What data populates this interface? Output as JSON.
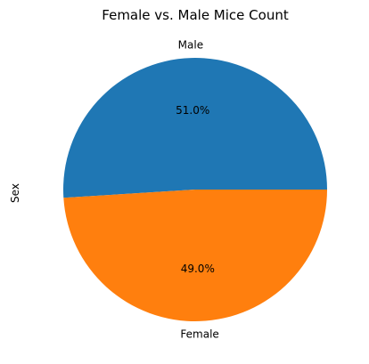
{
  "chart_data": {
    "type": "pie",
    "title": "Female vs. Male Mice Count",
    "ylabel": "Sex",
    "slices": [
      {
        "label": "Male",
        "value": 51.0,
        "pct_label": "51.0%",
        "color": "#1f77b4"
      },
      {
        "label": "Female",
        "value": 49.0,
        "pct_label": "49.0%",
        "color": "#ff7f0e"
      }
    ],
    "start_angle_deg": 0,
    "direction": "counterclockwise"
  }
}
